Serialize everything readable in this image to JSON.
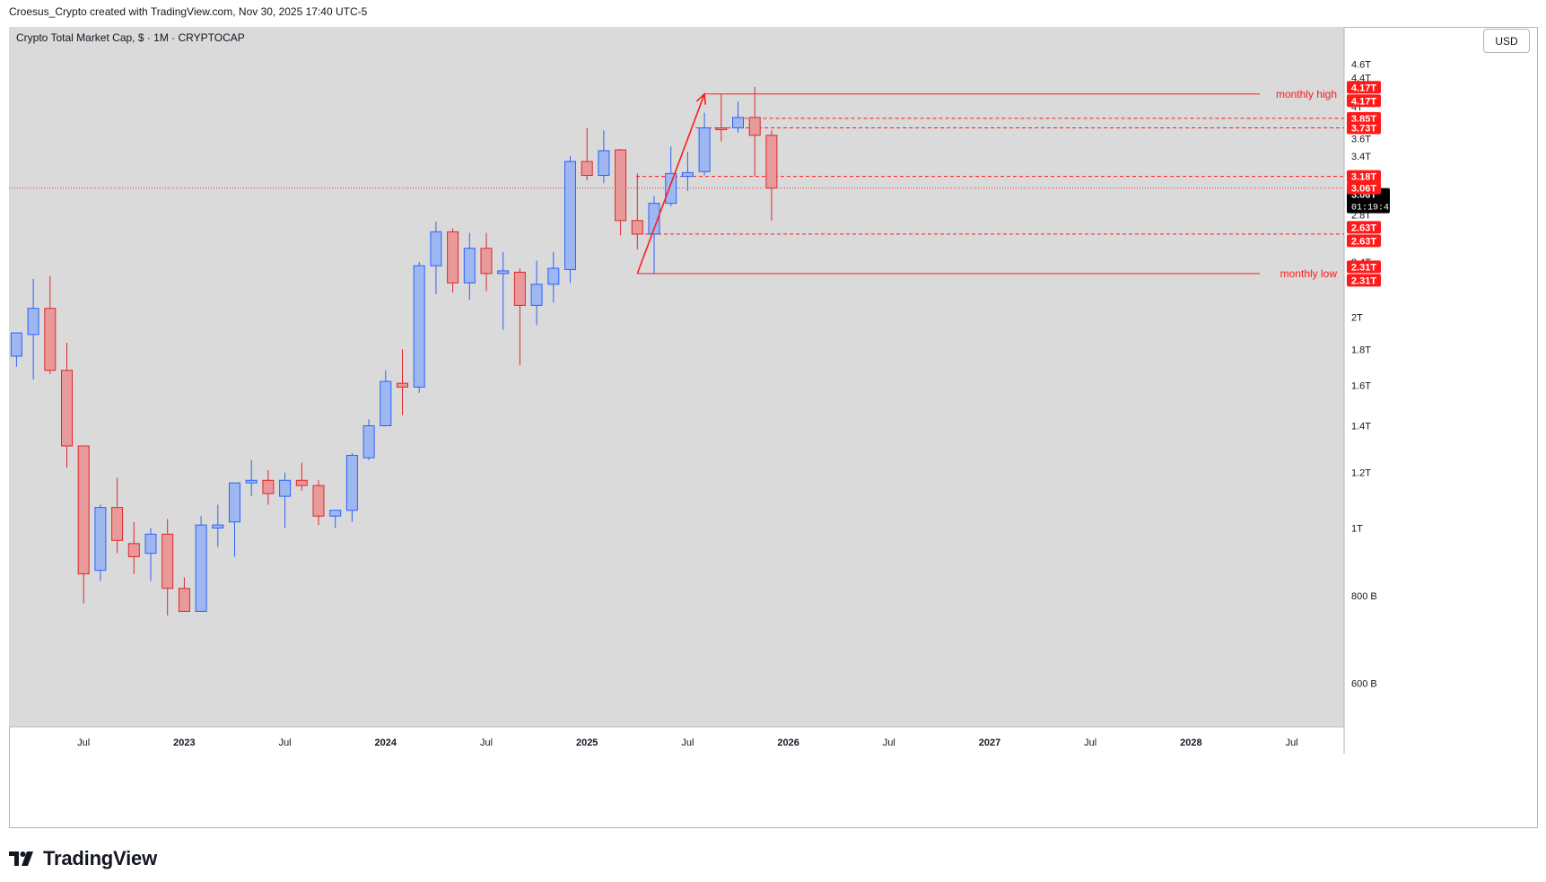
{
  "header": {
    "created_by": "Croesus_Crypto created with TradingView.com, Nov 30, 2025 17:40 UTC-5",
    "symbol_line": "Crypto Total Market Cap, $ · 1M · CRYPTOCAP",
    "currency_button": "USD"
  },
  "footer": {
    "brand": "TradingView",
    "logo_icon": "tradingview-logo-icon"
  },
  "colors": {
    "background": "#dadada",
    "up_body": "#9fb7f0",
    "up_border": "#2962ff",
    "down_body": "#e89a9a",
    "down_border": "#e0262a",
    "annotation_red": "#ff1a1a",
    "last_price_badge": "#000000"
  },
  "chart_data": {
    "type": "candlestick",
    "timeframe": "1M",
    "x_axis_labels": [
      "Jul",
      "2023",
      "Jul",
      "2024",
      "Jul",
      "2025",
      "Jul",
      "2026",
      "Jul",
      "2027",
      "Jul",
      "2028",
      "Jul"
    ],
    "y_axis_ticks": [
      "4.6T",
      "4.4T",
      "4T",
      "3.6T",
      "3.4T",
      "3T",
      "2.8T",
      "2.4T",
      "2T",
      "1.8T",
      "1.6T",
      "1.4T",
      "1.2T",
      "1T",
      "800 B",
      "600 B"
    ],
    "y_axis_tick_values": [
      4.6,
      4.4,
      4.0,
      3.6,
      3.4,
      3.0,
      2.8,
      2.4,
      2.0,
      1.8,
      1.6,
      1.4,
      1.2,
      1.0,
      0.8,
      0.6
    ],
    "candles": [
      {
        "date": "2022-03",
        "o": 1.76,
        "h": 1.9,
        "l": 1.7,
        "c": 1.9
      },
      {
        "date": "2022-04",
        "o": 1.89,
        "h": 2.27,
        "l": 1.63,
        "c": 2.06
      },
      {
        "date": "2022-05",
        "o": 2.06,
        "h": 2.29,
        "l": 1.66,
        "c": 1.68
      },
      {
        "date": "2022-06",
        "o": 1.68,
        "h": 1.84,
        "l": 1.22,
        "c": 1.31
      },
      {
        "date": "2022-07",
        "o": 1.31,
        "h": 1.31,
        "l": 0.78,
        "c": 0.86
      },
      {
        "date": "2022-08",
        "o": 0.87,
        "h": 1.08,
        "l": 0.84,
        "c": 1.07
      },
      {
        "date": "2022-09",
        "o": 1.07,
        "h": 1.18,
        "l": 0.92,
        "c": 0.96
      },
      {
        "date": "2022-10",
        "o": 0.95,
        "h": 1.02,
        "l": 0.86,
        "c": 0.91
      },
      {
        "date": "2022-11",
        "o": 0.92,
        "h": 1.0,
        "l": 0.84,
        "c": 0.98
      },
      {
        "date": "2022-12",
        "o": 0.98,
        "h": 1.03,
        "l": 0.75,
        "c": 0.82
      },
      {
        "date": "2023-01",
        "o": 0.82,
        "h": 0.85,
        "l": 0.76,
        "c": 0.76
      },
      {
        "date": "2023-02",
        "o": 0.76,
        "h": 1.04,
        "l": 0.76,
        "c": 1.01
      },
      {
        "date": "2023-03",
        "o": 1.0,
        "h": 1.08,
        "l": 0.94,
        "c": 1.01
      },
      {
        "date": "2023-04",
        "o": 1.02,
        "h": 1.16,
        "l": 0.91,
        "c": 1.16
      },
      {
        "date": "2023-05",
        "o": 1.16,
        "h": 1.25,
        "l": 1.11,
        "c": 1.17
      },
      {
        "date": "2023-06",
        "o": 1.17,
        "h": 1.21,
        "l": 1.08,
        "c": 1.12
      },
      {
        "date": "2023-07",
        "o": 1.11,
        "h": 1.2,
        "l": 1.0,
        "c": 1.17
      },
      {
        "date": "2023-08",
        "o": 1.17,
        "h": 1.24,
        "l": 1.13,
        "c": 1.15
      },
      {
        "date": "2023-09",
        "o": 1.15,
        "h": 1.17,
        "l": 1.01,
        "c": 1.04
      },
      {
        "date": "2023-10",
        "o": 1.04,
        "h": 1.06,
        "l": 1.0,
        "c": 1.06
      },
      {
        "date": "2023-11",
        "o": 1.06,
        "h": 1.28,
        "l": 1.02,
        "c": 1.27
      },
      {
        "date": "2023-12",
        "o": 1.26,
        "h": 1.43,
        "l": 1.25,
        "c": 1.4
      },
      {
        "date": "2024-01",
        "o": 1.4,
        "h": 1.68,
        "l": 1.4,
        "c": 1.62
      },
      {
        "date": "2024-02",
        "o": 1.61,
        "h": 1.8,
        "l": 1.45,
        "c": 1.59
      },
      {
        "date": "2024-03",
        "o": 1.59,
        "h": 2.4,
        "l": 1.56,
        "c": 2.37
      },
      {
        "date": "2024-04",
        "o": 2.37,
        "h": 2.74,
        "l": 2.16,
        "c": 2.65
      },
      {
        "date": "2024-05",
        "o": 2.65,
        "h": 2.68,
        "l": 2.17,
        "c": 2.24
      },
      {
        "date": "2024-06",
        "o": 2.24,
        "h": 2.64,
        "l": 2.12,
        "c": 2.51
      },
      {
        "date": "2024-07",
        "o": 2.51,
        "h": 2.64,
        "l": 2.18,
        "c": 2.31
      },
      {
        "date": "2024-08",
        "o": 2.31,
        "h": 2.48,
        "l": 1.92,
        "c": 2.33
      },
      {
        "date": "2024-09",
        "o": 2.32,
        "h": 2.35,
        "l": 1.71,
        "c": 2.08
      },
      {
        "date": "2024-10",
        "o": 2.08,
        "h": 2.41,
        "l": 1.95,
        "c": 2.23
      },
      {
        "date": "2024-11",
        "o": 2.23,
        "h": 2.48,
        "l": 2.1,
        "c": 2.35
      },
      {
        "date": "2024-12",
        "o": 2.34,
        "h": 3.4,
        "l": 2.24,
        "c": 3.34
      },
      {
        "date": "2025-01",
        "o": 3.34,
        "h": 3.73,
        "l": 3.14,
        "c": 3.19
      },
      {
        "date": "2025-02",
        "o": 3.19,
        "h": 3.7,
        "l": 3.11,
        "c": 3.46
      },
      {
        "date": "2025-03",
        "o": 3.47,
        "h": 3.48,
        "l": 2.62,
        "c": 2.75
      },
      {
        "date": "2025-04",
        "o": 2.75,
        "h": 3.21,
        "l": 2.5,
        "c": 2.63
      },
      {
        "date": "2025-05",
        "o": 2.63,
        "h": 2.98,
        "l": 2.31,
        "c": 2.91
      },
      {
        "date": "2025-06",
        "o": 2.91,
        "h": 3.51,
        "l": 2.88,
        "c": 3.21
      },
      {
        "date": "2025-07",
        "o": 3.18,
        "h": 3.45,
        "l": 3.03,
        "c": 3.22
      },
      {
        "date": "2025-08",
        "o": 3.23,
        "h": 3.92,
        "l": 3.19,
        "c": 3.73
      },
      {
        "date": "2025-09",
        "o": 3.73,
        "h": 4.17,
        "l": 3.57,
        "c": 3.72
      },
      {
        "date": "2025-10",
        "o": 3.73,
        "h": 4.07,
        "l": 3.67,
        "c": 3.86
      },
      {
        "date": "2025-11",
        "o": 3.86,
        "h": 4.27,
        "l": 3.18,
        "c": 3.64
      },
      {
        "date": "2025-12",
        "o": 3.64,
        "h": 3.7,
        "l": 2.75,
        "c": 3.06
      }
    ],
    "horizontal_levels": [
      {
        "value": 4.17,
        "style": "solid",
        "label": "monthly high",
        "badges": [
          "4.17T",
          "4.17T"
        ]
      },
      {
        "value": 3.85,
        "style": "dashed",
        "badges": [
          "3.85T"
        ]
      },
      {
        "value": 3.73,
        "style": "dashed",
        "badges": [
          "3.73T"
        ]
      },
      {
        "value": 3.18,
        "style": "dashed",
        "badges": [
          "3.18T"
        ]
      },
      {
        "value": 2.63,
        "style": "dashed",
        "badges": [
          "2.63T",
          "2.63T"
        ]
      },
      {
        "value": 2.31,
        "style": "solid",
        "label": "monthly low",
        "badges": [
          "2.31T",
          "2.31T"
        ]
      }
    ],
    "last_price": {
      "value": 3.06,
      "label": "3.06T",
      "countdown": "01:19:41",
      "red_badge": "3.06T"
    },
    "arrow": {
      "from": {
        "date": "2025-04",
        "value": 2.31
      },
      "to": {
        "date": "2025-08",
        "value": 4.17
      }
    },
    "overlapped_tick_label": "3.8T"
  }
}
